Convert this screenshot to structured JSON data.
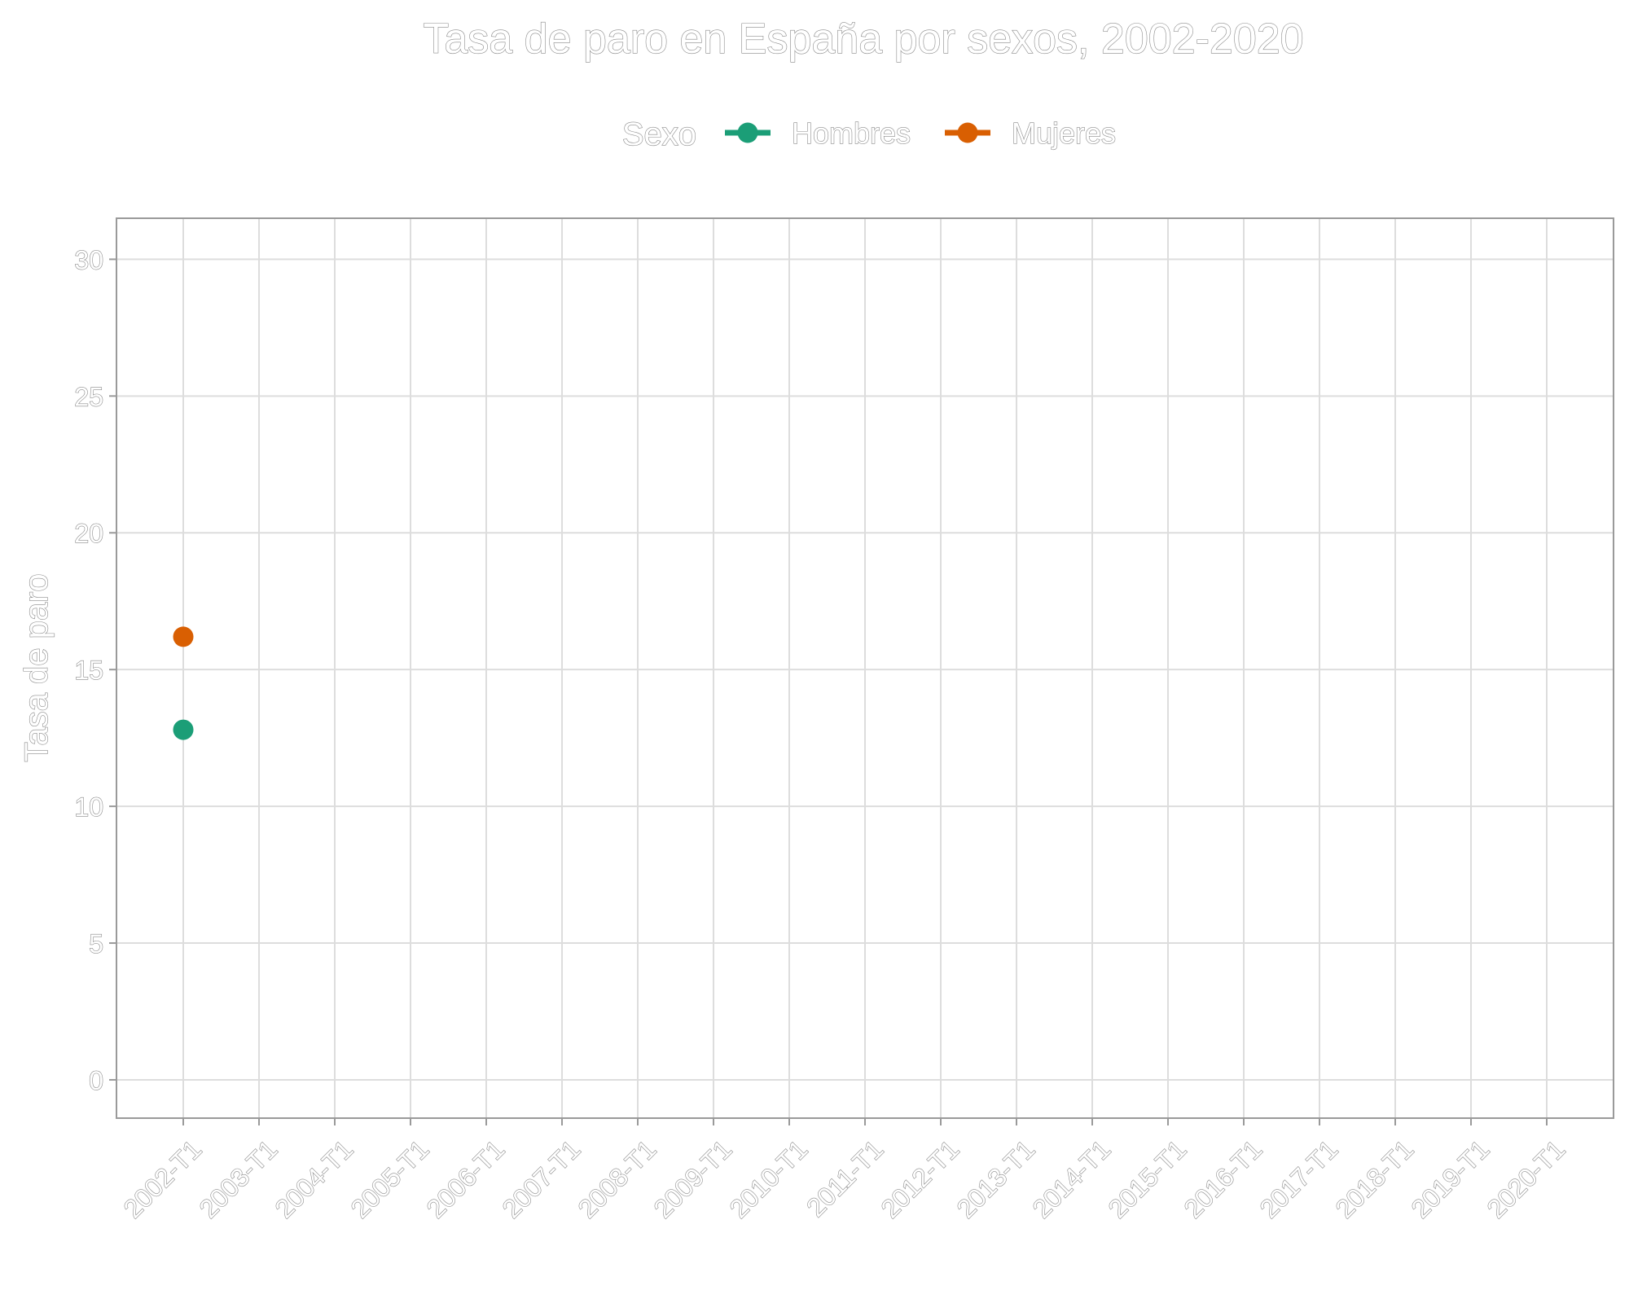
{
  "chart_data": {
    "type": "line",
    "title": "Tasa de paro en España por sexos, 2002-2020",
    "xlabel": "",
    "ylabel": "Tasa de paro",
    "legend_title": "Sexo",
    "legend_position": "top",
    "categories": [
      "2002-T1",
      "2003-T1",
      "2004-T1",
      "2005-T1",
      "2006-T1",
      "2007-T1",
      "2008-T1",
      "2009-T1",
      "2010-T1",
      "2011-T1",
      "2012-T1",
      "2013-T1",
      "2014-T1",
      "2015-T1",
      "2016-T1",
      "2017-T1",
      "2018-T1",
      "2019-T1",
      "2020-T1"
    ],
    "ylim": [
      -1.4,
      31.5
    ],
    "yticks": [
      0,
      5,
      10,
      15,
      20,
      25,
      30
    ],
    "grid": true,
    "series": [
      {
        "name": "Hombres",
        "color": "#1b9e77",
        "points": [
          {
            "x": "2002-T1",
            "y": 12.8
          }
        ]
      },
      {
        "name": "Mujeres",
        "color": "#d95f02",
        "points": [
          {
            "x": "2002-T1",
            "y": 16.2
          }
        ]
      }
    ]
  }
}
